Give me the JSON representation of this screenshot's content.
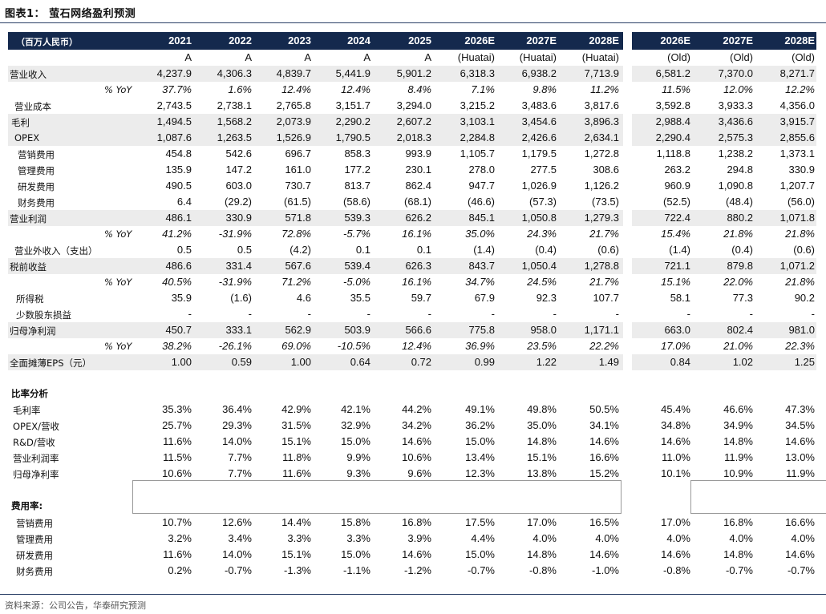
{
  "title": "图表1： 萤石网络盈利预测",
  "unit_label": "（百万人民币）",
  "columns": [
    "2021",
    "2022",
    "2023",
    "2024",
    "2025",
    "2026E",
    "2027E",
    "2028E",
    "2026E",
    "2027E",
    "2028E"
  ],
  "subheaders": [
    "A",
    "A",
    "A",
    "A",
    "A",
    "(Huatai)",
    "(Huatai)",
    "(Huatai)",
    "(Old)",
    "(Old)",
    "(Old)"
  ],
  "rows": [
    {
      "label": "营业收入",
      "values": [
        "4,237.9",
        "4,306.3",
        "4,839.7",
        "5,441.9",
        "5,901.2",
        "6,318.3",
        "6,938.2",
        "7,713.9",
        "6,581.2",
        "7,370.0",
        "8,271.7"
      ]
    },
    {
      "label": "% YoY",
      "values": [
        "37.7%",
        "1.6%",
        "12.4%",
        "12.4%",
        "8.4%",
        "7.1%",
        "9.8%",
        "11.2%",
        "11.5%",
        "12.0%",
        "12.2%"
      ]
    },
    {
      "label": "营业成本",
      "values": [
        "2,743.5",
        "2,738.1",
        "2,765.8",
        "3,151.7",
        "3,294.0",
        "3,215.2",
        "3,483.6",
        "3,817.6",
        "3,592.8",
        "3,933.3",
        "4,356.0"
      ]
    },
    {
      "label": "毛利",
      "values": [
        "1,494.5",
        "1,568.2",
        "2,073.9",
        "2,290.2",
        "2,607.2",
        "3,103.1",
        "3,454.6",
        "3,896.3",
        "2,988.4",
        "3,436.6",
        "3,915.7"
      ]
    },
    {
      "label": "OPEX",
      "values": [
        "1,087.6",
        "1,263.5",
        "1,526.9",
        "1,790.5",
        "2,018.3",
        "2,284.8",
        "2,426.6",
        "2,634.1",
        "2,290.4",
        "2,575.3",
        "2,855.6"
      ]
    },
    {
      "label": "营销费用",
      "values": [
        "454.8",
        "542.6",
        "696.7",
        "858.3",
        "993.9",
        "1,105.7",
        "1,179.5",
        "1,272.8",
        "1,118.8",
        "1,238.2",
        "1,373.1"
      ]
    },
    {
      "label": "管理费用",
      "values": [
        "135.9",
        "147.2",
        "161.0",
        "177.2",
        "230.1",
        "278.0",
        "277.5",
        "308.6",
        "263.2",
        "294.8",
        "330.9"
      ]
    },
    {
      "label": "研发费用",
      "values": [
        "490.5",
        "603.0",
        "730.7",
        "813.7",
        "862.4",
        "947.7",
        "1,026.9",
        "1,126.2",
        "960.9",
        "1,090.8",
        "1,207.7"
      ]
    },
    {
      "label": "财务费用",
      "values": [
        "6.4",
        "(29.2)",
        "(61.5)",
        "(58.6)",
        "(68.1)",
        "(46.6)",
        "(57.3)",
        "(73.5)",
        "(52.5)",
        "(48.4)",
        "(56.0)"
      ]
    },
    {
      "label": "营业利润",
      "values": [
        "486.1",
        "330.9",
        "571.8",
        "539.3",
        "626.2",
        "845.1",
        "1,050.8",
        "1,279.3",
        "722.4",
        "880.2",
        "1,071.8"
      ]
    },
    {
      "label": "% YoY",
      "values": [
        "41.2%",
        "-31.9%",
        "72.8%",
        "-5.7%",
        "16.1%",
        "35.0%",
        "24.3%",
        "21.7%",
        "15.4%",
        "21.8%",
        "21.8%"
      ]
    },
    {
      "label": "营业外收入（支出）",
      "values": [
        "0.5",
        "0.5",
        "(4.2)",
        "0.1",
        "0.1",
        "(1.4)",
        "(0.4)",
        "(0.6)",
        "(1.4)",
        "(0.4)",
        "(0.6)"
      ]
    },
    {
      "label": "税前收益",
      "values": [
        "486.6",
        "331.4",
        "567.6",
        "539.4",
        "626.3",
        "843.7",
        "1,050.4",
        "1,278.8",
        "721.1",
        "879.8",
        "1,071.2"
      ]
    },
    {
      "label": "% YoY",
      "values": [
        "40.5%",
        "-31.9%",
        "71.2%",
        "-5.0%",
        "16.1%",
        "34.7%",
        "24.5%",
        "21.7%",
        "15.1%",
        "22.0%",
        "21.8%"
      ]
    },
    {
      "label": "所得税",
      "values": [
        "35.9",
        "(1.6)",
        "4.6",
        "35.5",
        "59.7",
        "67.9",
        "92.3",
        "107.7",
        "58.1",
        "77.3",
        "90.2"
      ]
    },
    {
      "label": "少数股东损益",
      "values": [
        "-",
        "-",
        "-",
        "-",
        "-",
        "-",
        "-",
        "-",
        "-",
        "-",
        "-"
      ]
    },
    {
      "label": "归母净利润",
      "values": [
        "450.7",
        "333.1",
        "562.9",
        "503.9",
        "566.6",
        "775.8",
        "958.0",
        "1,171.1",
        "663.0",
        "802.4",
        "981.0"
      ]
    },
    {
      "label": "% YoY",
      "values": [
        "38.2%",
        "-26.1%",
        "69.0%",
        "-10.5%",
        "12.4%",
        "36.9%",
        "23.5%",
        "22.2%",
        "17.0%",
        "21.0%",
        "22.3%"
      ]
    },
    {
      "label": "全面摊薄EPS（元）",
      "values": [
        "1.00",
        "0.59",
        "1.00",
        "0.64",
        "0.72",
        "0.99",
        "1.22",
        "1.49",
        "0.84",
        "1.02",
        "1.25"
      ]
    }
  ],
  "ratio_section": "比率分析",
  "ratios": [
    {
      "label": "毛利率",
      "values": [
        "35.3%",
        "36.4%",
        "42.9%",
        "42.1%",
        "44.2%",
        "49.1%",
        "49.8%",
        "50.5%",
        "45.4%",
        "46.6%",
        "47.3%"
      ]
    },
    {
      "label": "OPEX/营收",
      "values": [
        "25.7%",
        "29.3%",
        "31.5%",
        "32.9%",
        "34.2%",
        "36.2%",
        "35.0%",
        "34.1%",
        "34.8%",
        "34.9%",
        "34.5%"
      ]
    },
    {
      "label": "R&D/营收",
      "values": [
        "11.6%",
        "14.0%",
        "15.1%",
        "15.0%",
        "14.6%",
        "15.0%",
        "14.8%",
        "14.6%",
        "14.6%",
        "14.8%",
        "14.6%"
      ]
    },
    {
      "label": "营业利润率",
      "values": [
        "11.5%",
        "7.7%",
        "11.8%",
        "9.9%",
        "10.6%",
        "13.4%",
        "15.1%",
        "16.6%",
        "11.0%",
        "11.9%",
        "13.0%"
      ]
    },
    {
      "label": "归母净利率",
      "values": [
        "10.6%",
        "7.7%",
        "11.6%",
        "9.3%",
        "9.6%",
        "12.3%",
        "13.8%",
        "15.2%",
        "10.1%",
        "10.9%",
        "11.9%"
      ]
    }
  ],
  "expense_section": "费用率:",
  "expense_ratios": [
    {
      "label": "营销费用",
      "values": [
        "10.7%",
        "12.6%",
        "14.4%",
        "15.8%",
        "16.8%",
        "17.5%",
        "17.0%",
        "16.5%",
        "17.0%",
        "16.8%",
        "16.6%"
      ]
    },
    {
      "label": "管理费用",
      "values": [
        "3.2%",
        "3.4%",
        "3.3%",
        "3.3%",
        "3.9%",
        "4.4%",
        "4.0%",
        "4.0%",
        "4.0%",
        "4.0%",
        "4.0%"
      ]
    },
    {
      "label": "研发费用",
      "values": [
        "11.6%",
        "14.0%",
        "15.1%",
        "15.0%",
        "14.6%",
        "15.0%",
        "14.8%",
        "14.6%",
        "14.6%",
        "14.8%",
        "14.6%"
      ]
    },
    {
      "label": "财务费用",
      "values": [
        "0.2%",
        "-0.7%",
        "-1.3%",
        "-1.1%",
        "-1.2%",
        "-0.7%",
        "-0.8%",
        "-1.0%",
        "-0.8%",
        "-0.7%",
        "-0.7%"
      ]
    }
  ],
  "source": "资料来源：公司公告，华泰研究预测",
  "chart_data": {
    "type": "table",
    "title": "图表1： 萤石网络盈利预测"
  }
}
